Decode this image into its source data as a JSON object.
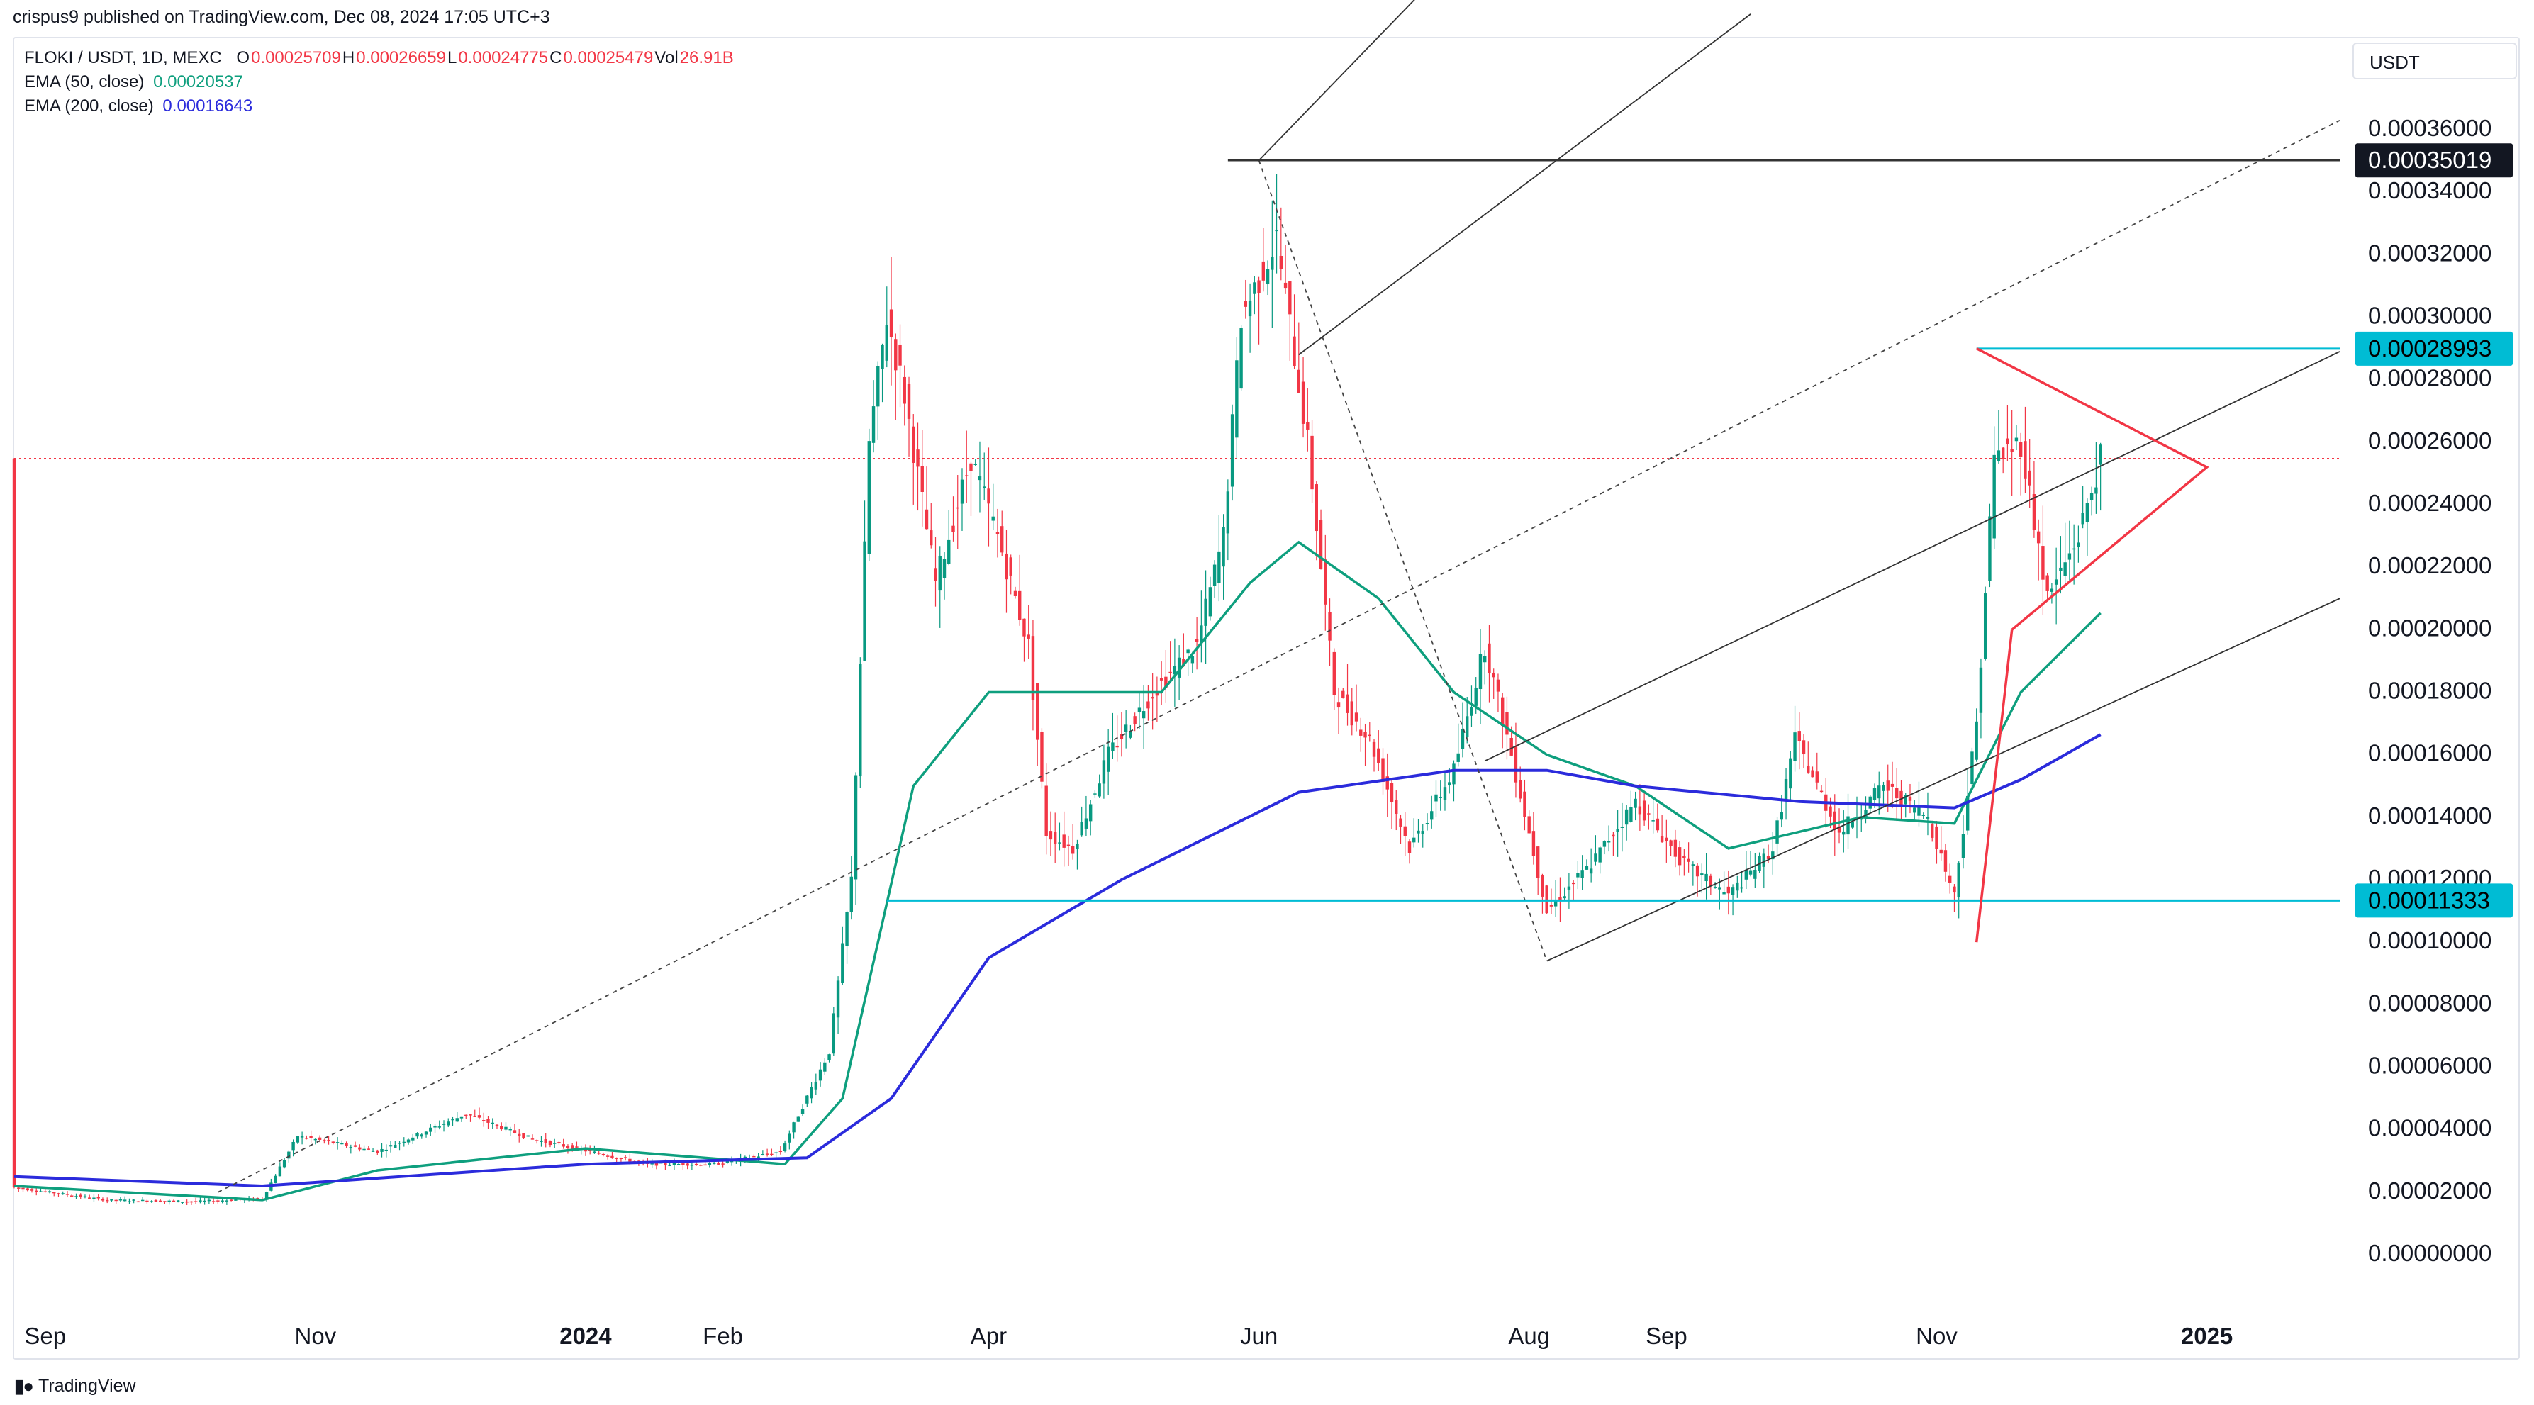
{
  "header": {
    "published": "crispus9 published on TradingView.com, Dec 08, 2024 17:05 UTC+3"
  },
  "legend": {
    "symbol": "FLOKI / USDT, 1D, MEXC",
    "ohlc": [
      {
        "k": "O",
        "v": "0.00025709"
      },
      {
        "k": "H",
        "v": "0.00026659"
      },
      {
        "k": "L",
        "v": "0.00024775"
      },
      {
        "k": "C",
        "v": "0.00025479"
      },
      {
        "k": "Vol",
        "v": "26.91B"
      }
    ],
    "ema50_label": "EMA (50, close)",
    "ema50_value": "0.00020537",
    "ema200_label": "EMA (200, close)",
    "ema200_value": "0.00016643"
  },
  "currency_button": "USDT",
  "branding": {
    "name": "TradingView"
  },
  "colors": {
    "up": "#089981",
    "down": "#f23645",
    "ema50": "#0e9f7e",
    "ema200": "#2b2bdc",
    "channel": "#333333",
    "support": "#00bcd4",
    "triangle": "#f23645",
    "label_dark": "#131722",
    "label_cyan": "#00bcd4",
    "last_price_line": "#f23645"
  },
  "chart_data": {
    "type": "candlestick",
    "title": "FLOKI / USDT, 1D, MEXC",
    "y_axis": {
      "ticks": [
        "0.00036000",
        "0.00034000",
        "0.00032000",
        "0.00030000",
        "0.00028000",
        "0.00026000",
        "0.00024000",
        "0.00022000",
        "0.00020000",
        "0.00018000",
        "0.00016000",
        "0.00014000",
        "0.00012000",
        "0.00010000",
        "0.00008000",
        "0.00006000",
        "0.00004000",
        "0.00002000",
        "0.00000000"
      ],
      "range": [
        0.0,
        0.00036
      ]
    },
    "x_axis": {
      "labels": [
        {
          "text": "Sep",
          "date": "2023-09-01",
          "bold": false
        },
        {
          "text": "Nov",
          "date": "2023-11-01",
          "bold": false
        },
        {
          "text": "2024",
          "date": "2024-01-01",
          "bold": true
        },
        {
          "text": "Feb",
          "date": "2024-02-01",
          "bold": false
        },
        {
          "text": "Apr",
          "date": "2024-04-01",
          "bold": false
        },
        {
          "text": "Jun",
          "date": "2024-06-01",
          "bold": false
        },
        {
          "text": "Aug",
          "date": "2024-08-01",
          "bold": false
        },
        {
          "text": "Sep",
          "date": "2024-09-01",
          "bold": false
        },
        {
          "text": "Nov",
          "date": "2024-11-01",
          "bold": false
        },
        {
          "text": "2025",
          "date": "2025-01-01",
          "bold": true
        }
      ]
    },
    "price_labels": [
      {
        "text": "0.00035019",
        "value": 0.00035019,
        "style": "dark"
      },
      {
        "text": "0.00028993",
        "value": 0.00028993,
        "style": "cyan"
      },
      {
        "text": "0.00011333",
        "value": 0.00011333,
        "style": "cyan"
      }
    ],
    "last_price": 0.00025479,
    "series": [
      {
        "name": "FLOKI / USDT",
        "type": "close_approx",
        "points": [
          [
            "2023-08-25",
            2.15e-05
          ],
          [
            "2023-09-15",
            1.75e-05
          ],
          [
            "2023-10-05",
            1.7e-05
          ],
          [
            "2023-10-20",
            1.8e-05
          ],
          [
            "2023-10-28",
            3.8e-05
          ],
          [
            "2023-11-15",
            3.3e-05
          ],
          [
            "2023-12-05",
            4.5e-05
          ],
          [
            "2023-12-20",
            3.7e-05
          ],
          [
            "2024-01-15",
            2.9e-05
          ],
          [
            "2024-01-30",
            2.9e-05
          ],
          [
            "2024-02-14",
            3.3e-05
          ],
          [
            "2024-02-25",
            6.5e-05
          ],
          [
            "2024-03-01",
            0.00012
          ],
          [
            "2024-03-05",
            0.00026
          ],
          [
            "2024-03-09",
            0.0003
          ],
          [
            "2024-03-13",
            0.000275
          ],
          [
            "2024-03-20",
            0.000215
          ],
          [
            "2024-03-28",
            0.000255
          ],
          [
            "2024-04-03",
            0.00023
          ],
          [
            "2024-04-10",
            0.000195
          ],
          [
            "2024-04-14",
            0.000135
          ],
          [
            "2024-04-20",
            0.00013
          ],
          [
            "2024-04-28",
            0.00016
          ],
          [
            "2024-05-08",
            0.00018
          ],
          [
            "2024-05-18",
            0.000195
          ],
          [
            "2024-05-24",
            0.00023
          ],
          [
            "2024-05-28",
            0.0003
          ],
          [
            "2024-06-05",
            0.000325
          ],
          [
            "2024-06-12",
            0.00026
          ],
          [
            "2024-06-18",
            0.00018
          ],
          [
            "2024-06-26",
            0.000165
          ],
          [
            "2024-07-05",
            0.00013
          ],
          [
            "2024-07-15",
            0.000155
          ],
          [
            "2024-07-22",
            0.000195
          ],
          [
            "2024-07-28",
            0.00016
          ],
          [
            "2024-08-05",
            0.00011
          ],
          [
            "2024-08-15",
            0.000125
          ],
          [
            "2024-08-25",
            0.000145
          ],
          [
            "2024-09-05",
            0.000125
          ],
          [
            "2024-09-15",
            0.000115
          ],
          [
            "2024-09-25",
            0.00013
          ],
          [
            "2024-09-30",
            0.000165
          ],
          [
            "2024-10-10",
            0.000135
          ],
          [
            "2024-10-20",
            0.00015
          ],
          [
            "2024-10-30",
            0.00014
          ],
          [
            "2024-11-05",
            0.000115
          ],
          [
            "2024-11-10",
            0.00017
          ],
          [
            "2024-11-14",
            0.000255
          ],
          [
            "2024-11-20",
            0.00026
          ],
          [
            "2024-11-26",
            0.00021
          ],
          [
            "2024-12-03",
            0.00023
          ],
          [
            "2024-12-08",
            0.00025479
          ]
        ]
      },
      {
        "name": "EMA (50, close)",
        "points": [
          [
            "2023-08-25",
            2.2e-05
          ],
          [
            "2023-10-20",
            1.75e-05
          ],
          [
            "2023-11-15",
            2.7e-05
          ],
          [
            "2024-01-01",
            3.4e-05
          ],
          [
            "2024-02-15",
            2.9e-05
          ],
          [
            "2024-02-28",
            5e-05
          ],
          [
            "2024-03-15",
            0.00015
          ],
          [
            "2024-04-01",
            0.00018
          ],
          [
            "2024-04-15",
            0.00018
          ],
          [
            "2024-05-10",
            0.00018
          ],
          [
            "2024-05-30",
            0.000215
          ],
          [
            "2024-06-10",
            0.000228
          ],
          [
            "2024-06-28",
            0.00021
          ],
          [
            "2024-07-15",
            0.00018
          ],
          [
            "2024-08-05",
            0.00016
          ],
          [
            "2024-08-25",
            0.00015
          ],
          [
            "2024-09-15",
            0.00013
          ],
          [
            "2024-10-15",
            0.00014
          ],
          [
            "2024-11-05",
            0.000138
          ],
          [
            "2024-11-20",
            0.00018
          ],
          [
            "2024-12-08",
            0.00020537
          ]
        ]
      },
      {
        "name": "EMA (200, close)",
        "points": [
          [
            "2023-08-25",
            2.5e-05
          ],
          [
            "2023-10-20",
            2.2e-05
          ],
          [
            "2024-01-01",
            2.9e-05
          ],
          [
            "2024-02-20",
            3.1e-05
          ],
          [
            "2024-03-10",
            5e-05
          ],
          [
            "2024-04-01",
            9.5e-05
          ],
          [
            "2024-05-01",
            0.00012
          ],
          [
            "2024-06-10",
            0.000148
          ],
          [
            "2024-07-15",
            0.000155
          ],
          [
            "2024-08-05",
            0.000155
          ],
          [
            "2024-08-25",
            0.00015
          ],
          [
            "2024-10-01",
            0.000145
          ],
          [
            "2024-11-05",
            0.000143
          ],
          [
            "2024-11-20",
            0.000152
          ],
          [
            "2024-12-08",
            0.00016643
          ]
        ]
      }
    ],
    "drawings": {
      "horizontal": [
        {
          "value": 0.00035019,
          "from": "2024-05-25",
          "to": "2025-01-31",
          "role": "high"
        },
        {
          "value": 0.00028993,
          "from": "2024-11-10",
          "to": "2025-01-31",
          "role": "resistance"
        },
        {
          "value": 0.00011333,
          "from": "2024-03-09",
          "to": "2025-01-31",
          "role": "support"
        }
      ],
      "pitchfork_median": [
        [
          "2023-10-10",
          2e-05
        ],
        [
          "2025-01-31",
          0.000363
        ]
      ],
      "pitchfork_lines": [
        [
          [
            "2024-06-01",
            0.00035019
          ],
          [
            "2024-08-15",
            0.00046
          ]
        ],
        [
          [
            "2024-06-10",
            0.000288
          ],
          [
            "2024-09-20",
            0.000397
          ]
        ],
        [
          [
            "2024-07-22",
            0.000158
          ],
          [
            "2025-01-31",
            0.000289
          ]
        ],
        [
          [
            "2024-08-05",
            9.4e-05
          ],
          [
            "2025-01-31",
            0.00021
          ]
        ]
      ],
      "pitchfork_handle": [
        [
          "2024-06-01",
          0.00035019
        ],
        [
          "2024-08-05",
          9.4e-05
        ]
      ],
      "triangle": [
        [
          "2024-11-10",
          0.00029
        ],
        [
          "2025-01-01",
          0.000252
        ],
        [
          "2024-11-18",
          0.0002
        ]
      ],
      "triangle_pole": [
        [
          "2024-11-10",
          0.0001
        ],
        [
          "2024-11-18",
          0.0002
        ]
      ]
    }
  }
}
